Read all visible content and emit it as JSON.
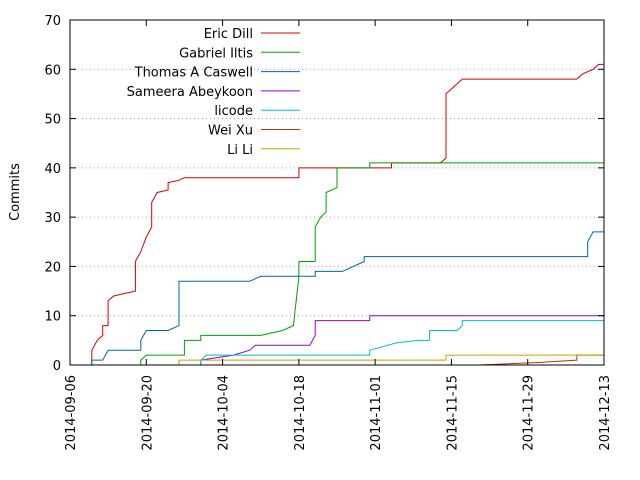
{
  "chart_data": {
    "type": "line",
    "title": "",
    "xlabel": "",
    "ylabel": "Commits",
    "ylim": [
      0,
      70
    ],
    "xlim": [
      "2014-09-06",
      "2014-12-13"
    ],
    "x_ticks": [
      "2014-09-06",
      "2014-09-20",
      "2014-10-04",
      "2014-10-18",
      "2014-11-01",
      "2014-11-15",
      "2014-11-29",
      "2014-12-13"
    ],
    "y_ticks": [
      0,
      10,
      20,
      30,
      40,
      50,
      60,
      70
    ],
    "grid": "dotted",
    "legend_position": "top-left",
    "series": [
      {
        "name": "Eric Dill",
        "color": "#d40000",
        "points": [
          [
            "2014-09-10",
            0
          ],
          [
            "2014-09-10",
            3
          ],
          [
            "2014-09-11",
            5
          ],
          [
            "2014-09-12",
            6
          ],
          [
            "2014-09-12",
            8
          ],
          [
            "2014-09-13",
            8
          ],
          [
            "2014-09-13",
            13
          ],
          [
            "2014-09-14",
            14
          ],
          [
            "2014-09-16",
            14.5
          ],
          [
            "2014-09-18",
            15
          ],
          [
            "2014-09-18",
            21
          ],
          [
            "2014-09-19",
            23
          ],
          [
            "2014-09-20",
            26
          ],
          [
            "2014-09-21",
            28
          ],
          [
            "2014-09-21",
            33
          ],
          [
            "2014-09-22",
            35
          ],
          [
            "2014-09-24",
            35.5
          ],
          [
            "2014-09-24",
            37
          ],
          [
            "2014-09-26",
            37.5
          ],
          [
            "2014-09-27",
            38
          ],
          [
            "2014-10-18",
            38
          ],
          [
            "2014-10-18",
            40
          ],
          [
            "2014-11-04",
            40
          ],
          [
            "2014-11-04",
            41
          ],
          [
            "2014-11-13",
            41
          ],
          [
            "2014-11-14",
            42
          ],
          [
            "2014-11-14",
            55
          ],
          [
            "2014-11-15",
            56
          ],
          [
            "2014-11-17",
            58
          ],
          [
            "2014-12-08",
            58
          ],
          [
            "2014-12-09",
            59
          ],
          [
            "2014-12-11",
            60
          ],
          [
            "2014-12-12",
            61
          ],
          [
            "2014-12-13",
            61
          ]
        ]
      },
      {
        "name": "Gabriel Iltis",
        "color": "#00a000",
        "points": [
          [
            "2014-09-19",
            0
          ],
          [
            "2014-09-19",
            1
          ],
          [
            "2014-09-20",
            2
          ],
          [
            "2014-09-27",
            2
          ],
          [
            "2014-09-27",
            5
          ],
          [
            "2014-09-30",
            5
          ],
          [
            "2014-09-30",
            6
          ],
          [
            "2014-10-11",
            6
          ],
          [
            "2014-10-15",
            7
          ],
          [
            "2014-10-17",
            8
          ],
          [
            "2014-10-18",
            18
          ],
          [
            "2014-10-18",
            21
          ],
          [
            "2014-10-21",
            21
          ],
          [
            "2014-10-21",
            28
          ],
          [
            "2014-10-22",
            30
          ],
          [
            "2014-10-23",
            31
          ],
          [
            "2014-10-23",
            35
          ],
          [
            "2014-10-25",
            36
          ],
          [
            "2014-10-25",
            40
          ],
          [
            "2014-10-31",
            40
          ],
          [
            "2014-10-31",
            41
          ],
          [
            "2014-12-13",
            41
          ]
        ]
      },
      {
        "name": "Thomas A Caswell",
        "color": "#0060c0",
        "points": [
          [
            "2014-09-10",
            0
          ],
          [
            "2014-09-10",
            1
          ],
          [
            "2014-09-12",
            1
          ],
          [
            "2014-09-13",
            3
          ],
          [
            "2014-09-19",
            3
          ],
          [
            "2014-09-19",
            5
          ],
          [
            "2014-09-20",
            7
          ],
          [
            "2014-09-24",
            7
          ],
          [
            "2014-09-26",
            8
          ],
          [
            "2014-09-26",
            17
          ],
          [
            "2014-10-09",
            17
          ],
          [
            "2014-10-11",
            18
          ],
          [
            "2014-10-21",
            18
          ],
          [
            "2014-10-21",
            19
          ],
          [
            "2014-10-26",
            19
          ],
          [
            "2014-10-30",
            21
          ],
          [
            "2014-10-30",
            22
          ],
          [
            "2014-12-10",
            22
          ],
          [
            "2014-12-10",
            25
          ],
          [
            "2014-12-11",
            27
          ],
          [
            "2014-12-13",
            27
          ]
        ]
      },
      {
        "name": "Sameera Abeykoon",
        "color": "#9400d3",
        "points": [
          [
            "2014-09-30",
            0
          ],
          [
            "2014-09-30",
            1
          ],
          [
            "2014-10-06",
            2
          ],
          [
            "2014-10-09",
            3
          ],
          [
            "2014-10-10",
            4
          ],
          [
            "2014-10-20",
            4
          ],
          [
            "2014-10-21",
            6
          ],
          [
            "2014-10-21",
            9
          ],
          [
            "2014-10-31",
            9
          ],
          [
            "2014-10-31",
            10
          ],
          [
            "2014-12-13",
            10
          ]
        ]
      },
      {
        "name": "licode",
        "color": "#00c0c0",
        "points": [
          [
            "2014-09-30",
            0
          ],
          [
            "2014-09-30",
            1
          ],
          [
            "2014-10-01",
            2
          ],
          [
            "2014-10-31",
            2
          ],
          [
            "2014-10-31",
            3
          ],
          [
            "2014-11-05",
            4.5
          ],
          [
            "2014-11-09",
            5
          ],
          [
            "2014-11-11",
            5
          ],
          [
            "2014-11-11",
            7
          ],
          [
            "2014-11-16",
            7
          ],
          [
            "2014-11-17",
            8
          ],
          [
            "2014-11-17",
            9
          ],
          [
            "2014-12-13",
            9
          ]
        ]
      },
      {
        "name": "Wei Xu",
        "color": "#c03000",
        "points": [
          [
            "2014-11-20",
            0
          ],
          [
            "2014-12-01",
            0.5
          ],
          [
            "2014-12-08",
            1
          ],
          [
            "2014-12-08",
            2
          ],
          [
            "2014-12-13",
            2
          ]
        ]
      },
      {
        "name": "Li Li",
        "color": "#c8a000",
        "points": [
          [
            "2014-09-26",
            0
          ],
          [
            "2014-09-26",
            1
          ],
          [
            "2014-11-14",
            1
          ],
          [
            "2014-11-14",
            2
          ],
          [
            "2014-12-13",
            2
          ]
        ]
      }
    ]
  }
}
